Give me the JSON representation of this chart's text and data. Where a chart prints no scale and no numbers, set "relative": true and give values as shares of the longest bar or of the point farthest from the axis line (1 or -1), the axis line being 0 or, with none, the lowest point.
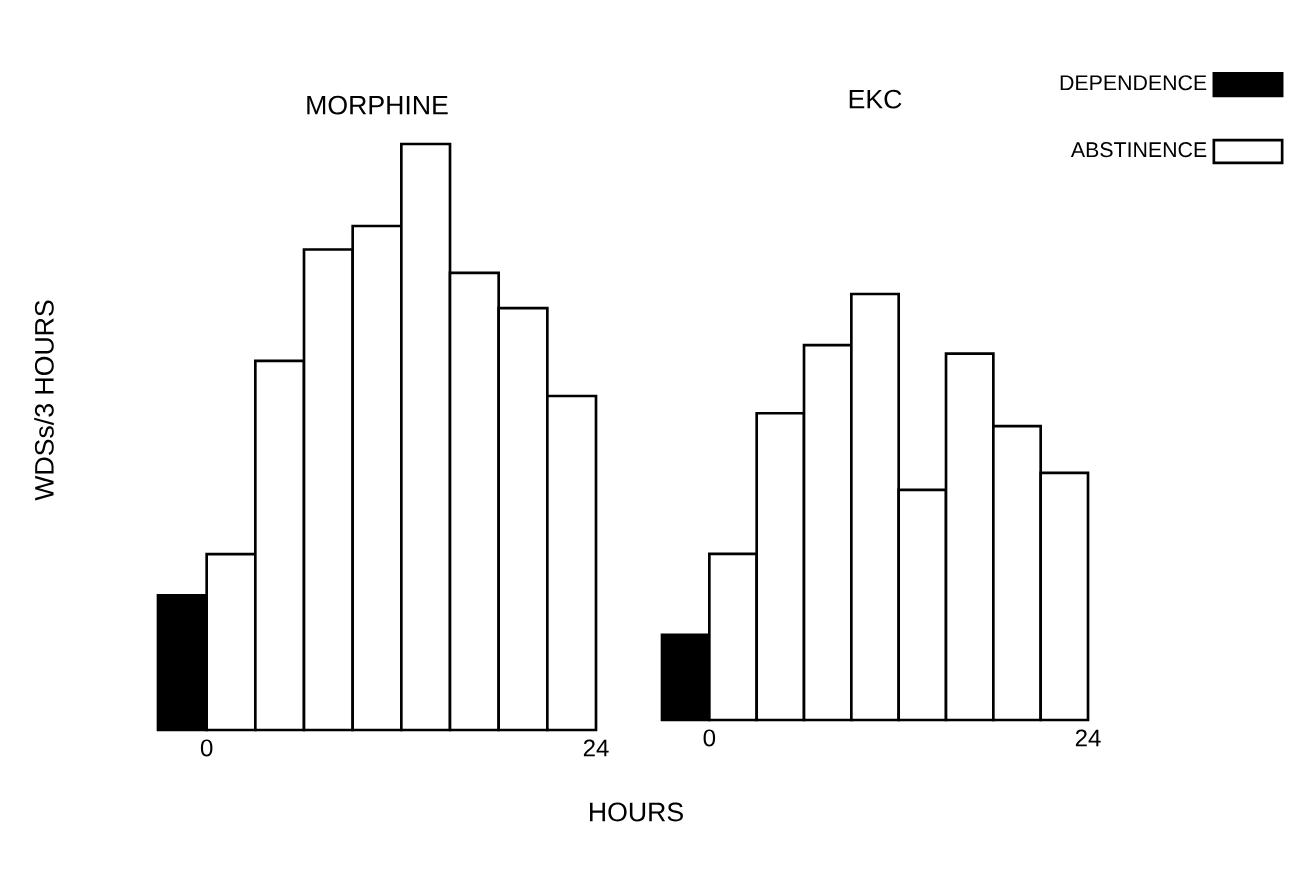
{
  "chart_data": [
    {
      "type": "bar",
      "title": "MORPHINE",
      "xlabel": "HOURS",
      "ylabel": "WDSs/3 HOURS",
      "relative": true,
      "xlim": [
        -3,
        24
      ],
      "xticks": [
        0,
        24
      ],
      "series": [
        {
          "color": "#000000",
          "x": [
            -1.5
          ],
          "values": [
            0.23
          ]
        },
        {
          "color": "#ffffff",
          "x": [
            1.5,
            4.5,
            7.5,
            10.5,
            13.5,
            16.5,
            19.5,
            22.5
          ],
          "values": [
            0.3,
            0.63,
            0.82,
            0.86,
            1,
            0.78,
            0.72,
            0.57
          ]
        }
      ]
    },
    {
      "type": "bar",
      "title": "EKC",
      "relative": true,
      "xlim": [
        -3,
        24
      ],
      "xticks": [
        0,
        24
      ],
      "legend": "right",
      "series": [
        {
          "name": "DEPENDENCE",
          "color": "#000000",
          "x": [
            -1.5
          ],
          "values": [
            0.2
          ]
        },
        {
          "name": "ABSTINENCE",
          "color": "#ffffff",
          "x": [
            1.5,
            4.5,
            7.5,
            10.5,
            13.5,
            16.5,
            19.5,
            22.5
          ],
          "values": [
            0.39,
            0.72,
            0.88,
            1,
            0.54,
            0.86,
            0.69,
            0.58
          ]
        }
      ]
    }
  ]
}
